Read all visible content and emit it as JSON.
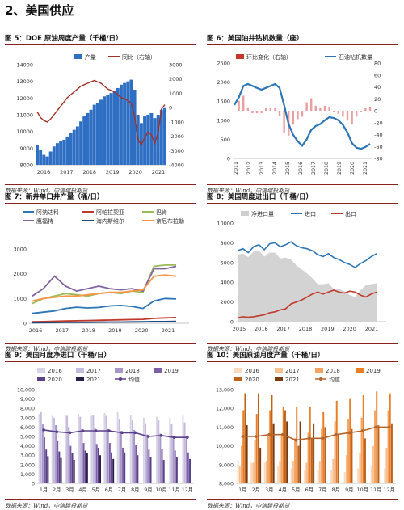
{
  "section_title": "2、美国供应",
  "source_label": "数据来源：Wind，中信建投期货",
  "charts": [
    {
      "title": "图 5：DOE 原油周度产量（千桶/日）",
      "chart_data": {
        "type": "bar",
        "legend": [
          "产量",
          "同比（右轴）"
        ],
        "x_ticks": [
          "2016",
          "2017",
          "2018",
          "2019",
          "2020",
          "2021"
        ],
        "y_left": {
          "ticks": [
            8000,
            9000,
            10000,
            11000,
            12000,
            13000,
            14000
          ],
          "ylim": [
            8000,
            14000
          ]
        },
        "y_right": {
          "ticks": [
            3000,
            2000,
            1000,
            0,
            -1000,
            -2000,
            -3000,
            -4000
          ],
          "ylim": [
            -4000,
            3000
          ]
        },
        "production": [
          9200,
          8900,
          8600,
          8500,
          8800,
          9100,
          9300,
          9400,
          9500,
          9700,
          9900,
          10100,
          10300,
          10600,
          10900,
          11100,
          11300,
          11600,
          11700,
          11900,
          12100,
          12200,
          12300,
          12400,
          12600,
          12800,
          12900,
          13000,
          13100,
          12500,
          11000,
          10500,
          10900,
          11000,
          11100,
          10800,
          11000,
          11300,
          11400
        ],
        "yoy": [
          -300,
          -700,
          -900,
          -1000,
          -800,
          -500,
          -200,
          100,
          400,
          700,
          900,
          1100,
          1300,
          1500,
          1600,
          1700,
          1800,
          1900,
          1800,
          1700,
          1500,
          1300,
          1200,
          1100,
          900,
          700,
          600,
          500,
          300,
          -600,
          -2200,
          -2600,
          -2100,
          -1700,
          -1900,
          -2500,
          -1800,
          -100,
          200
        ]
      },
      "chart_data2": null
    },
    {
      "title": "图 6：美国油井钻机数量（座）",
      "chart_data": {
        "type": "line",
        "legend": [
          "环比变化（右轴）",
          "石油钻机数量"
        ],
        "x_ticks": [
          "2011",
          "2012",
          "2013",
          "2014",
          "2015",
          "2016",
          "2017",
          "2018",
          "2019",
          "2020",
          "2021"
        ],
        "y_left": {
          "ticks": [
            0,
            500,
            1000,
            1500,
            2000,
            2500
          ],
          "ylim": [
            0,
            2500
          ]
        },
        "y_right": {
          "ticks": [
            80,
            60,
            40,
            20,
            0,
            -20,
            -40,
            -60,
            -80
          ],
          "ylim": [
            -80,
            80
          ]
        },
        "rigs": [
          1400,
          1600,
          1900,
          1950,
          1900,
          1850,
          1800,
          1850,
          1900,
          1950,
          1850,
          1400,
          900,
          620,
          450,
          330,
          500,
          750,
          850,
          900,
          1000,
          1080,
          1060,
          1000,
          880,
          680,
          400,
          280,
          250,
          300,
          380
        ]
      }
    },
    {
      "title": "图 7：新井单口井产量（桶/日）",
      "chart_data": {
        "type": "line",
        "legend": [
          "阿纳达科",
          "阿帕拉契亚",
          "巴肯",
          "鹰福特",
          "海内斯维尔",
          "奈厄布拉勒"
        ],
        "x_ticks": [
          "2016",
          "2017",
          "2018",
          "2019",
          "2020",
          "2021"
        ],
        "y_ticks": [
          0,
          1000,
          2000,
          3000
        ],
        "ylim": [
          0,
          3000
        ],
        "series": [
          {
            "name": "阿纳达科",
            "color": "#2e75b6",
            "values": [
              400,
              450,
              500,
              600,
              650,
              620,
              640,
              700,
              720,
              680,
              600,
              900,
              1000,
              980
            ]
          },
          {
            "name": "阿帕拉契亚",
            "color": "#c0392b",
            "values": [
              60,
              70,
              80,
              90,
              100,
              110,
              120,
              130,
              140,
              150,
              160,
              200,
              220,
              230
            ]
          },
          {
            "name": "巴肯",
            "color": "#9bbb59",
            "values": [
              800,
              1000,
              1100,
              1200,
              1150,
              1100,
              1200,
              1250,
              1200,
              1300,
              1250,
              2300,
              2350,
              2350
            ]
          },
          {
            "name": "鹰福特",
            "color": "#8064a2",
            "values": [
              1100,
              1400,
              1900,
              1500,
              1300,
              1400,
              1500,
              1400,
              1350,
              1400,
              1300,
              2200,
              2200,
              2300
            ]
          },
          {
            "name": "海内斯维尔",
            "color": "#1f497d",
            "values": [
              20,
              25,
              30,
              35,
              40,
              40,
              45,
              50,
              50,
              55,
              60,
              70,
              70,
              75
            ]
          },
          {
            "name": "奈厄布拉勒",
            "color": "#f79646",
            "values": [
              900,
              1000,
              1050,
              1100,
              1100,
              1150,
              1200,
              1250,
              1250,
              1300,
              1350,
              1900,
              1950,
              1900
            ]
          }
        ]
      }
    },
    {
      "title": "图 8：美国周度进出口（千桶/日）",
      "chart_data": {
        "type": "area",
        "legend": [
          "净进口量",
          "进口",
          "出口"
        ],
        "x_ticks": [
          "2015",
          "2016",
          "2017",
          "2018",
          "2019",
          "2020",
          "2021"
        ],
        "y_ticks": [
          0,
          2000,
          4000,
          6000,
          8000,
          10000
        ],
        "ylim": [
          0,
          10000
        ],
        "imports": [
          7200,
          7400,
          7000,
          7600,
          7800,
          7300,
          7900,
          8000,
          7600,
          7800,
          8100,
          7700,
          7500,
          7400,
          7200,
          6800,
          6600,
          6900,
          6500,
          6300,
          6000,
          5800,
          5500,
          5900,
          6200,
          6600,
          6900
        ],
        "exports": [
          400,
          500,
          450,
          500,
          600,
          700,
          900,
          1000,
          1200,
          1300,
          1800,
          2000,
          2200,
          2500,
          2800,
          3000,
          2800,
          3000,
          3200,
          3000,
          2900,
          3100,
          3000,
          2700,
          2500,
          2800,
          3000
        ],
        "net_imports": [
          6800,
          6900,
          6550,
          7100,
          7200,
          6600,
          7000,
          7000,
          6400,
          6500,
          6300,
          5700,
          5300,
          4900,
          4400,
          3800,
          3800,
          3900,
          3300,
          3300,
          3100,
          2700,
          2500,
          3200,
          3700,
          3800,
          3900
        ]
      }
    },
    {
      "title": "图 9：美国月度净进口（千桶/日）",
      "chart_data": {
        "type": "bar",
        "legend": [
          "2016",
          "2017",
          "2018",
          "2019",
          "2020",
          "2021",
          "均值"
        ],
        "categories": [
          "1月",
          "2月",
          "3月",
          "4月",
          "5月",
          "6月",
          "7月",
          "8月",
          "9月",
          "10月",
          "11月",
          "12月"
        ],
        "y_ticks": [
          0,
          1000,
          2000,
          3000,
          4000,
          5000,
          6000,
          7000,
          8000,
          9000,
          10000
        ],
        "ylim": [
          0,
          10000
        ],
        "series": [
          {
            "name": "2016",
            "color": "#d9d3e8",
            "values": [
              7400,
              7200,
              7300,
              7400,
              7200,
              7500,
              7600,
              7300,
              7000,
              7100,
              7000,
              7200
            ]
          },
          {
            "name": "2017",
            "color": "#c5bbdc",
            "values": [
              7600,
              7000,
              7200,
              7100,
              7300,
              7200,
              6800,
              6700,
              6400,
              6700,
              6300,
              6500
            ]
          },
          {
            "name": "2018",
            "color": "#a796c8",
            "values": [
              6300,
              6200,
              6000,
              5800,
              5900,
              5800,
              5600,
              5700,
              5200,
              5300,
              5100,
              4800
            ]
          },
          {
            "name": "2019",
            "color": "#7d5fa8",
            "values": [
              4900,
              4500,
              4000,
              4300,
              4200,
              4300,
              3800,
              4100,
              3600,
              3700,
              3500,
              3300
            ]
          },
          {
            "name": "2020",
            "color": "#59418a",
            "values": [
              3600,
              3400,
              3200,
              3500,
              3800,
              3300,
              3300,
              3000,
              2800,
              2500,
              2800,
              2600
            ]
          },
          {
            "name": "2021",
            "color": "#2a1d4a",
            "values": [
              2900,
              2700,
              2500,
              3200,
              3000,
              2600,
              0,
              0,
              0,
              0,
              0,
              0
            ]
          }
        ],
        "mean": [
          5700,
          5500,
          5400,
          5600,
          5600,
          5600,
          5400,
          5400,
          5000,
          5100,
          4900,
          4900
        ]
      }
    },
    {
      "title": "图 10：美国原油月度产量（千桶/日）",
      "chart_data": {
        "type": "bar",
        "legend": [
          "2016",
          "2017",
          "2018",
          "2019",
          "2020",
          "2021",
          "均值"
        ],
        "categories": [
          "1月",
          "2月",
          "3月",
          "4月",
          "5月",
          "6月",
          "7月",
          "8月",
          "9月",
          "10月",
          "11月",
          "12月"
        ],
        "y_ticks": [
          8000,
          9000,
          10000,
          11000,
          12000,
          13000
        ],
        "ylim": [
          8000,
          13000
        ],
        "series": [
          {
            "name": "2016",
            "color": "#fbd9bd",
            "values": [
              9200,
              9100,
              9100,
              8900,
              8800,
              8700,
              8700,
              8700,
              8600,
              8800,
              8900,
              8800
            ]
          },
          {
            "name": "2017",
            "color": "#f8c08f",
            "values": [
              8900,
              9100,
              9200,
              9200,
              9200,
              9100,
              9200,
              9300,
              9500,
              9600,
              10000,
              9900
            ]
          },
          {
            "name": "2018",
            "color": "#f4a361",
            "values": [
              10000,
              10300,
              10500,
              10500,
              10400,
              10700,
              10900,
              11300,
              11400,
              11500,
              11900,
              11900
            ]
          },
          {
            "name": "2019",
            "color": "#e87e2a",
            "values": [
              11900,
              11700,
              11900,
              12100,
              12100,
              12100,
              11800,
              12400,
              12500,
              12700,
              12900,
              12800
            ]
          },
          {
            "name": "2020",
            "color": "#c0631a",
            "values": [
              12800,
              12800,
              12700,
              11900,
              10000,
              10400,
              11000,
              10600,
              10900,
              10400,
              11100,
              11200
            ]
          },
          {
            "name": "2021",
            "color": "#7a3a0c",
            "values": [
              11100,
              9900,
              11200,
              11300,
              11300,
              11200,
              8000,
              8000,
              8000,
              8000,
              8000,
              8000
            ]
          }
        ],
        "mean": [
          10500,
          10500,
          10600,
          10600,
          10300,
          10400,
          10400,
          10600,
          10700,
          10800,
          11000,
          11000
        ]
      }
    }
  ]
}
